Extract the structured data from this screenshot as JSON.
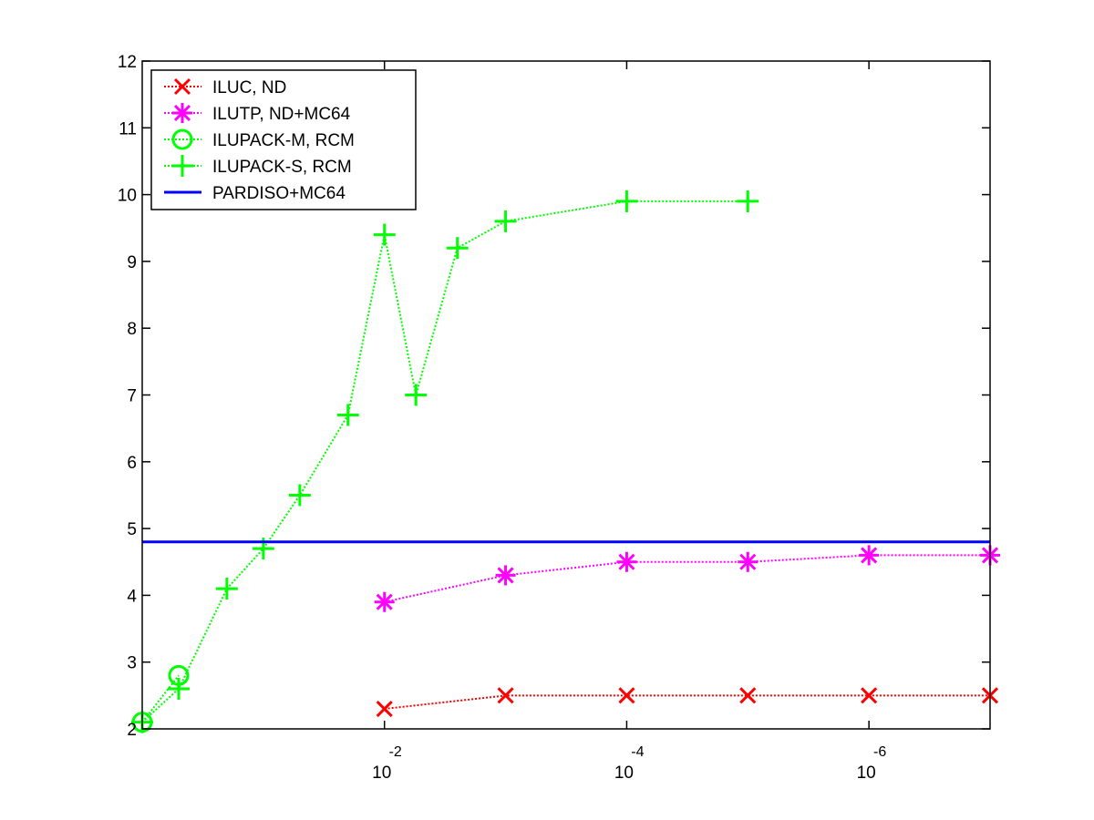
{
  "chart_data": {
    "type": "line",
    "xscale": "log",
    "xaxis_reversed": true,
    "xlim": [
      1,
      1e-07
    ],
    "ylim": [
      2,
      12
    ],
    "grid": false,
    "legend_position": "top-left",
    "title": "",
    "xlabel": "",
    "ylabel": "",
    "xticks": [
      {
        "value": 0.01,
        "base": "10",
        "exp": "-2"
      },
      {
        "value": 0.0001,
        "base": "10",
        "exp": "-4"
      },
      {
        "value": 1e-06,
        "base": "10",
        "exp": "-6"
      }
    ],
    "yticks": [
      "2",
      "3",
      "4",
      "5",
      "6",
      "7",
      "8",
      "9",
      "10",
      "11",
      "12"
    ],
    "series": [
      {
        "name": "ILUC,  ND",
        "color": "#ff0000",
        "marker": "x",
        "line": "dotted",
        "x": [
          0.01,
          0.001,
          0.0001,
          1e-05,
          1e-06,
          1e-07
        ],
        "y": [
          2.3,
          2.5,
          2.5,
          2.5,
          2.5,
          2.5
        ]
      },
      {
        "name": "ILUTP,  ND+MC64",
        "color": "#ff00ff",
        "marker": "asterisk",
        "line": "dotted",
        "x": [
          0.01,
          0.001,
          0.0001,
          1e-05,
          1e-06,
          1e-07
        ],
        "y": [
          3.9,
          4.3,
          4.5,
          4.5,
          4.6,
          4.6
        ]
      },
      {
        "name": "ILUPACK-M, RCM",
        "color": "#00ff00",
        "marker": "circle",
        "line": "dotted",
        "x": [
          1,
          0.5
        ],
        "y": [
          2.1,
          2.8
        ]
      },
      {
        "name": "ILUPACK-S, RCM",
        "color": "#00ff00",
        "marker": "plus",
        "line": "dotted",
        "x": [
          1,
          0.5,
          0.2,
          0.1,
          0.05,
          0.02,
          0.01,
          0.0055,
          0.0025,
          0.001,
          0.0001,
          1e-05
        ],
        "y": [
          2.1,
          2.6,
          4.1,
          4.7,
          5.5,
          6.7,
          9.4,
          7.0,
          9.2,
          9.6,
          9.9,
          9.9
        ]
      },
      {
        "name": "PARDISO+MC64",
        "color": "#0000ff",
        "marker": "none",
        "line": "solid",
        "x": [
          1,
          1e-07
        ],
        "y": [
          4.8,
          4.8
        ]
      }
    ]
  }
}
